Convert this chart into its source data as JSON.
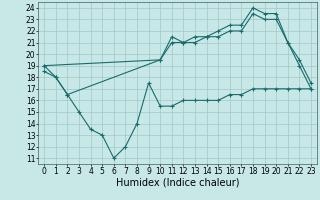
{
  "xlabel": "Humidex (Indice chaleur)",
  "bg_color": "#c8e8e8",
  "grid_color": "#a0c8c8",
  "line_color": "#1a6b6b",
  "xlim": [
    -0.5,
    23.5
  ],
  "ylim": [
    10.5,
    24.5
  ],
  "yticks": [
    11,
    12,
    13,
    14,
    15,
    16,
    17,
    18,
    19,
    20,
    21,
    22,
    23,
    24
  ],
  "xticks": [
    0,
    1,
    2,
    3,
    4,
    5,
    6,
    7,
    8,
    9,
    10,
    11,
    12,
    13,
    14,
    15,
    16,
    17,
    18,
    19,
    20,
    21,
    22,
    23
  ],
  "line1_x": [
    0,
    1,
    2,
    3,
    4,
    5,
    6,
    7,
    8,
    9,
    10,
    11,
    12,
    13,
    14,
    15,
    16,
    17,
    18,
    19,
    20,
    21,
    22,
    23
  ],
  "line1_y": [
    19,
    18,
    16.5,
    15,
    13.5,
    13,
    11,
    12,
    14,
    17.5,
    15.5,
    15.5,
    16,
    16,
    16,
    16,
    16.5,
    16.5,
    17,
    17,
    17,
    17,
    17,
    17
  ],
  "line2_x": [
    0,
    1,
    2,
    10,
    11,
    12,
    13,
    14,
    15,
    16,
    17,
    18,
    19,
    20,
    21,
    22,
    23
  ],
  "line2_y": [
    18.5,
    18,
    16.5,
    19.5,
    21.5,
    21,
    21,
    21.5,
    21.5,
    22,
    22,
    23.5,
    23,
    23,
    21,
    19,
    17
  ],
  "line3_x": [
    0,
    10,
    11,
    12,
    13,
    14,
    15,
    16,
    17,
    18,
    19,
    20,
    21,
    22,
    23
  ],
  "line3_y": [
    19,
    19.5,
    21,
    21,
    21.5,
    21.5,
    22,
    22.5,
    22.5,
    24,
    23.5,
    23.5,
    21,
    19.5,
    17.5
  ],
  "xlabel_fontsize": 7,
  "tick_fontsize": 5.5
}
